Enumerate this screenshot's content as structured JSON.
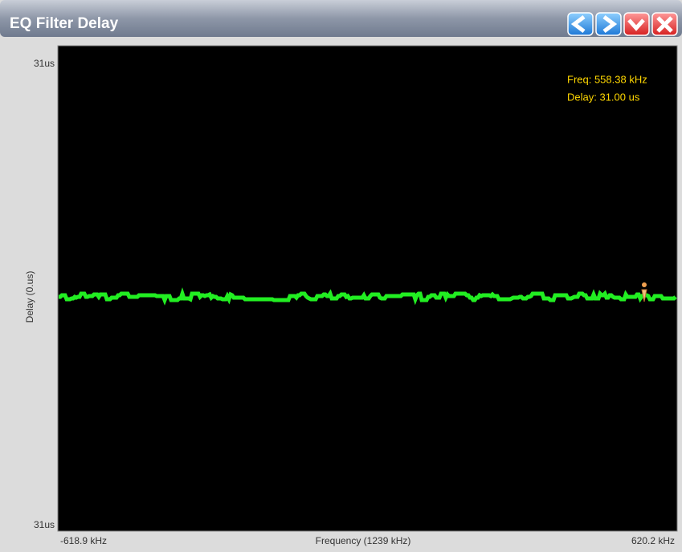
{
  "window": {
    "title": "EQ Filter Delay"
  },
  "plot": {
    "y_axis": {
      "top": "31us",
      "bottom": "31us",
      "label": "Delay (0.us)"
    },
    "x_axis": {
      "left": "-618.9 kHz",
      "center": "Frequency (1239 kHz)",
      "right": "620.2 kHz"
    },
    "readout": {
      "freq": "Freq: 558.38 kHz",
      "delay": "Delay: 31.00 us"
    }
  }
}
